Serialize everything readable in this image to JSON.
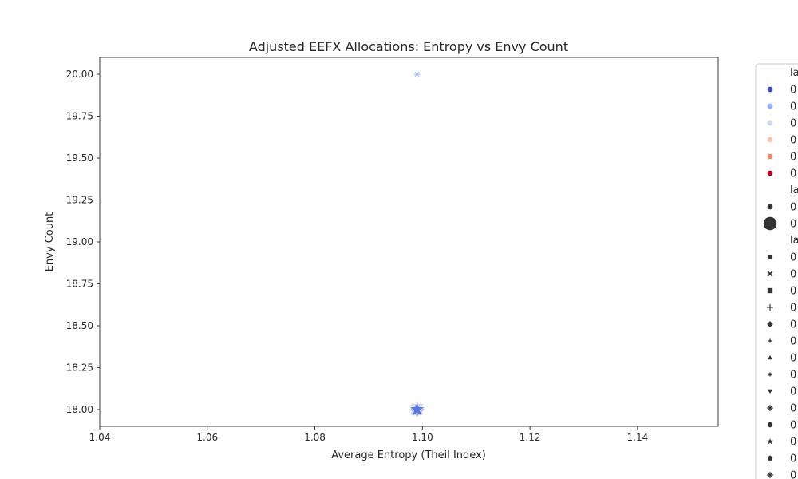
{
  "chart_data": {
    "type": "scatter",
    "title": "Adjusted EEFX Allocations: Entropy vs Envy Count",
    "xlabel": "Average Entropy (Theil Index)",
    "ylabel": "Envy Count",
    "xlim": [
      1.04,
      1.155
    ],
    "ylim": [
      17.9,
      20.1
    ],
    "xticks": [
      "1.04",
      "1.06",
      "1.08",
      "1.10",
      "1.12",
      "1.14"
    ],
    "yticks": [
      "18.00",
      "18.25",
      "18.50",
      "18.75",
      "19.00",
      "19.25",
      "19.50",
      "19.75",
      "20.00"
    ],
    "grid": false,
    "legend_position": "outside-right",
    "points": [
      {
        "x": 1.099,
        "y": 20.0,
        "color": "#8fb1fe",
        "marker": "asterisk",
        "size": "small"
      },
      {
        "x": 1.099,
        "y": 18.0,
        "color": "#f4c5ad",
        "marker": "square",
        "size": "large"
      },
      {
        "x": 1.099,
        "y": 18.0,
        "color": "#cbd8ee",
        "marker": "x",
        "size": "large"
      },
      {
        "x": 1.099,
        "y": 18.0,
        "color": "#ee8468",
        "marker": "plus",
        "size": "large"
      },
      {
        "x": 1.099,
        "y": 18.0,
        "color": "#8fb1fe",
        "marker": "diamond",
        "size": "large"
      },
      {
        "x": 1.099,
        "y": 18.0,
        "color": "#4a6fe3",
        "marker": "star",
        "size": "large"
      }
    ],
    "legend": {
      "hue_title": "la",
      "hue_entries": [
        {
          "label": "0",
          "color": "#3b4cc0"
        },
        {
          "label": "0",
          "color": "#8fb1fe"
        },
        {
          "label": "0",
          "color": "#cbd8ee"
        },
        {
          "label": "0",
          "color": "#f4c5ad"
        },
        {
          "label": "0",
          "color": "#ee8468"
        },
        {
          "label": "0",
          "color": "#b40426"
        }
      ],
      "size_title": "la",
      "size_entries": [
        {
          "label": "0",
          "size": "small"
        },
        {
          "label": "0",
          "size": "large"
        }
      ],
      "style_title": "la",
      "style_entries": [
        {
          "label": "0",
          "marker": "circle"
        },
        {
          "label": "0",
          "marker": "x"
        },
        {
          "label": "0",
          "marker": "square"
        },
        {
          "label": "0",
          "marker": "plus"
        },
        {
          "label": "0",
          "marker": "diamond"
        },
        {
          "label": "0",
          "marker": "star4"
        },
        {
          "label": "0",
          "marker": "triangle-up"
        },
        {
          "label": "0",
          "marker": "star6"
        },
        {
          "label": "0",
          "marker": "triangle-down"
        },
        {
          "label": "0",
          "marker": "asterisk"
        },
        {
          "label": "0",
          "marker": "hexagon"
        },
        {
          "label": "0",
          "marker": "star"
        },
        {
          "label": "0",
          "marker": "pentagon"
        },
        {
          "label": "0",
          "marker": "asterisk"
        }
      ]
    }
  }
}
